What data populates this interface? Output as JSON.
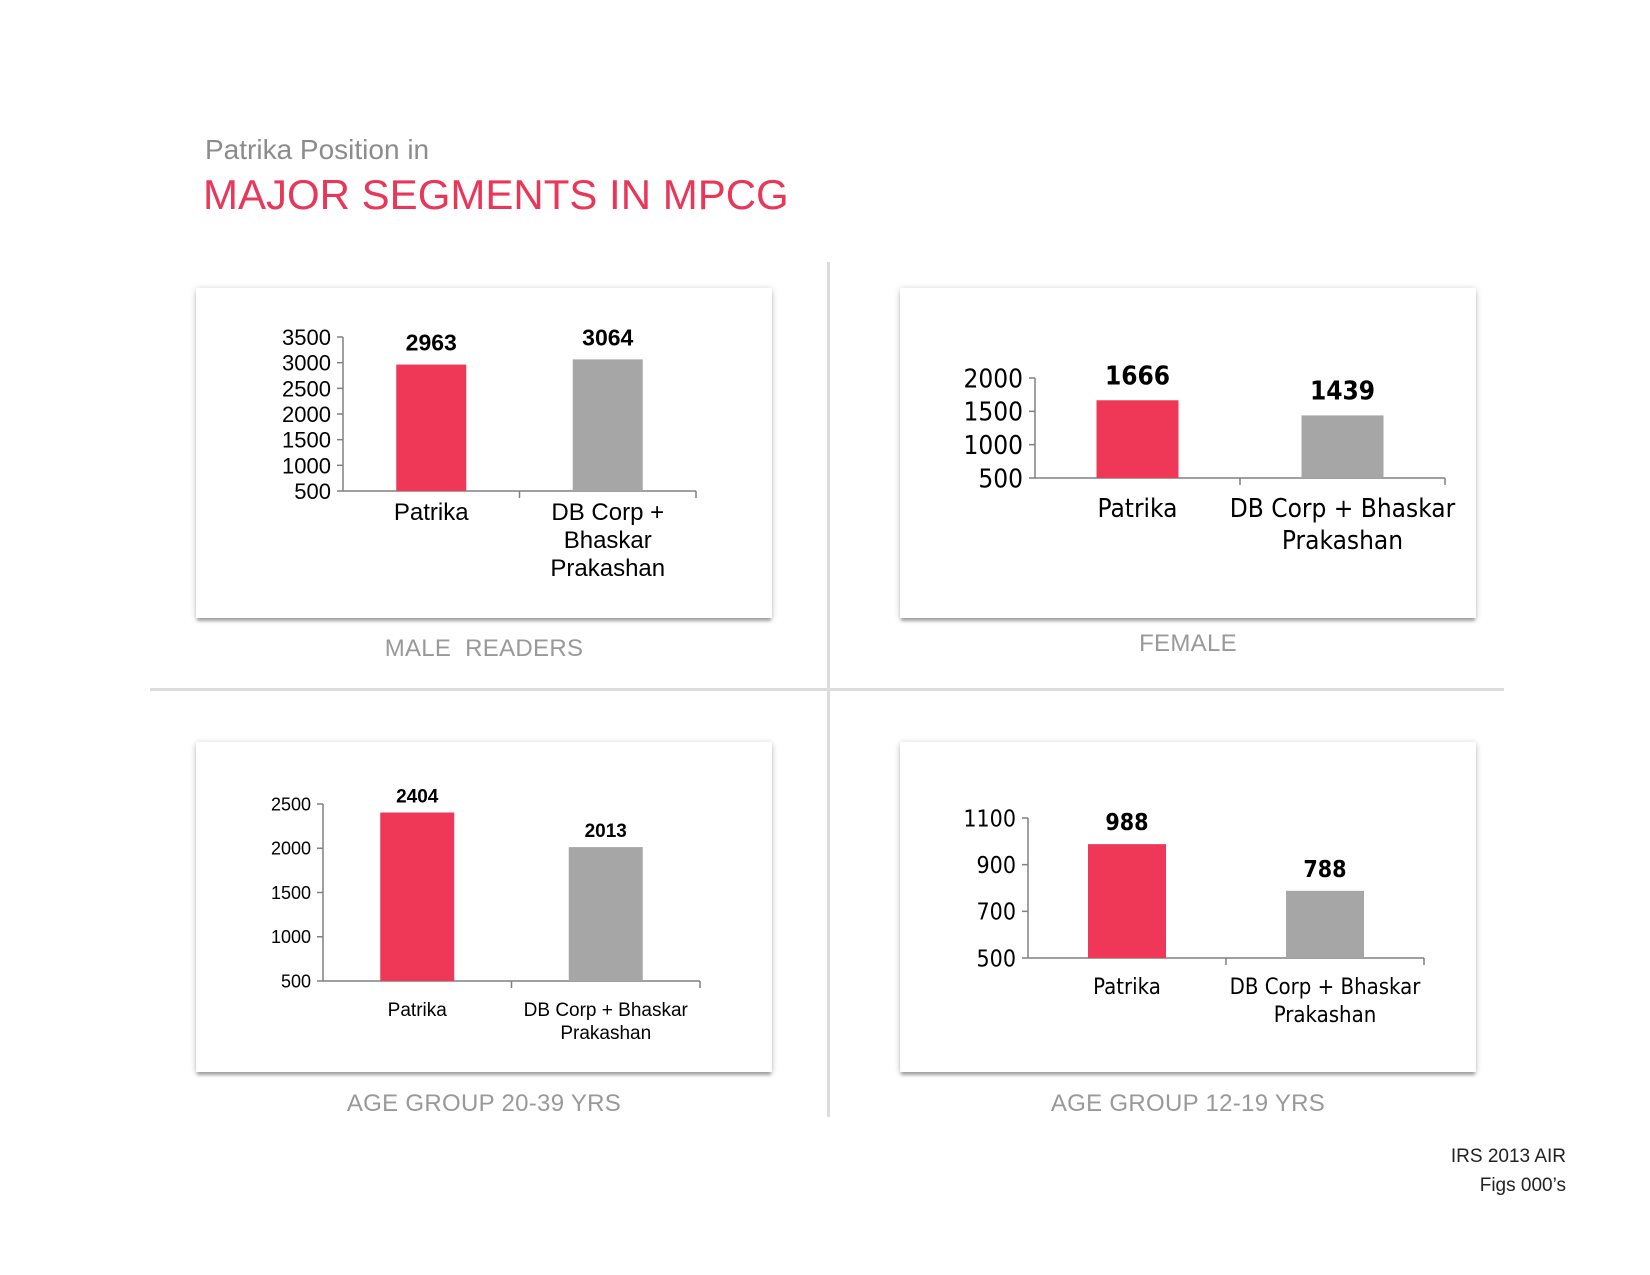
{
  "header": {
    "subtitle": "Patrika Position in",
    "title": "MAJOR SEGMENTS IN MPCG"
  },
  "colors": {
    "title": "#e8385a",
    "patrika": "#ef3857",
    "competitor": "#a6a6a6"
  },
  "source": {
    "line1": "IRS 2013 AIR",
    "line2": "Figs 000’s"
  },
  "chart_data": [
    {
      "type": "bar",
      "label": "MALE  READERS",
      "categories": [
        [
          "Patrika"
        ],
        [
          "DB Corp +",
          "Bhaskar",
          "Prakashan"
        ]
      ],
      "values": [
        2963,
        3064
      ],
      "ylim": [
        500,
        3500
      ],
      "yticks": [
        500,
        1000,
        1500,
        2000,
        2500,
        3000,
        3500
      ]
    },
    {
      "type": "bar",
      "label": "FEMALE",
      "categories": [
        [
          "Patrika"
        ],
        [
          "DB Corp + Bhaskar",
          "Prakashan"
        ]
      ],
      "values": [
        1666,
        1439
      ],
      "ylim": [
        500,
        2000
      ],
      "yticks": [
        500,
        1000,
        1500,
        2000
      ]
    },
    {
      "type": "bar",
      "label": "AGE GROUP 20-39 YRS",
      "categories": [
        [
          "Patrika"
        ],
        [
          "DB Corp + Bhaskar",
          "Prakashan"
        ]
      ],
      "values": [
        2404,
        2013
      ],
      "ylim": [
        500,
        2500
      ],
      "yticks": [
        500,
        1000,
        1500,
        2000,
        2500
      ]
    },
    {
      "type": "bar",
      "label": "AGE GROUP 12-19 YRS",
      "categories": [
        [
          "Patrika"
        ],
        [
          "DB Corp + Bhaskar",
          "Prakashan"
        ]
      ],
      "values": [
        988,
        788
      ],
      "ylim": [
        500,
        1100
      ],
      "yticks": [
        500,
        700,
        900,
        1100
      ]
    }
  ]
}
